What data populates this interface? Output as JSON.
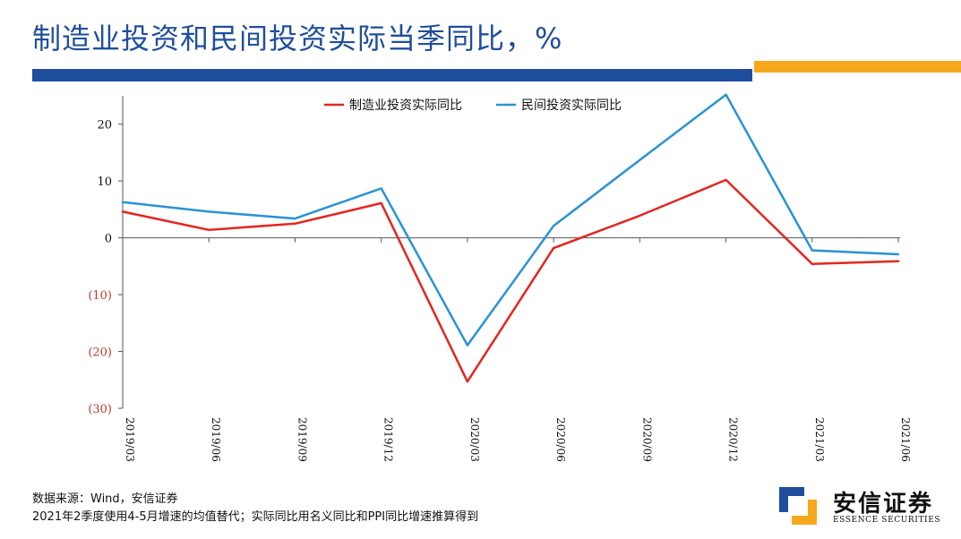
{
  "page": {
    "title": "制造业投资和民间投资实际当季同比，%",
    "colors": {
      "brand_blue": "#1f4e9c",
      "accent_gold": "#f5a81c"
    }
  },
  "chart_data": {
    "type": "line",
    "title": "",
    "xlabel": "",
    "ylabel": "",
    "categories": [
      "2019/03",
      "2019/06",
      "2019/09",
      "2019/12",
      "2020/03",
      "2020/06",
      "2020/09",
      "2020/12",
      "2021/03",
      "2021/06"
    ],
    "series": [
      {
        "name": "制造业投资实际同比",
        "color": "#e3261f",
        "values": [
          4.6,
          1.4,
          2.5,
          6.1,
          -25.3,
          -1.8,
          3.9,
          10.2,
          -4.6,
          -4.1
        ]
      },
      {
        "name": "民间投资实际同比",
        "color": "#2a93d5",
        "values": [
          6.3,
          4.6,
          3.4,
          8.7,
          -18.9,
          2.1,
          13.7,
          25.2,
          -2.2,
          -2.9
        ]
      }
    ],
    "ylim": [
      -30,
      25
    ],
    "yticks": [
      20,
      10,
      0,
      -10,
      -20,
      -30
    ],
    "ytick_labels": [
      "20",
      "10",
      "0",
      "(10)",
      "(20)",
      "(30)"
    ],
    "negative_tick_color": "#c0392b",
    "grid": false,
    "legend_position": "top"
  },
  "footnotes": {
    "source": "数据来源：Wind，安信证券",
    "note": "2021年2季度使用4-5月增速的均值替代；实际同比用名义同比和PPI同比增速推算得到"
  },
  "logo": {
    "name_cn": "安信证券",
    "name_en": "ESSENCE SECURITIES"
  }
}
